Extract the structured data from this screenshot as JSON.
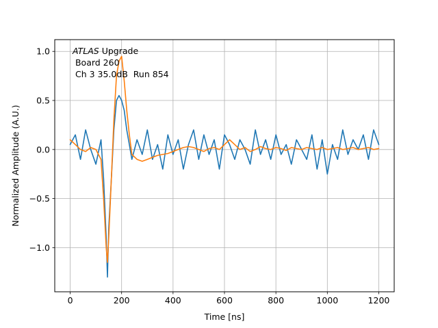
{
  "chart_data": {
    "type": "line",
    "xlabel": "Time [ns]",
    "ylabel": "Normalized Amplitude (A.U.)",
    "xlim": [
      -60,
      1260
    ],
    "ylim": [
      -1.45,
      1.12
    ],
    "xticks": [
      0,
      200,
      400,
      600,
      800,
      1000,
      1200
    ],
    "xtick_labels": [
      "0",
      "200",
      "400",
      "600",
      "800",
      "1000",
      "1200"
    ],
    "yticks": [
      -1.0,
      -0.5,
      0.0,
      0.5,
      1.0
    ],
    "ytick_labels": [
      "−1.0",
      "−0.5",
      "0.0",
      "0.5",
      "1.0"
    ],
    "grid": true,
    "annotation": {
      "italic_part": "ATLAS",
      "line1_rest": " Upgrade",
      "line2": " Board 260",
      "line3": " Ch 3 35.0dB  Run 854"
    },
    "series": [
      {
        "color": "#1f77b4",
        "x": [
          0,
          20,
          40,
          60,
          80,
          100,
          120,
          130,
          140,
          145,
          150,
          160,
          170,
          180,
          190,
          200,
          210,
          220,
          230,
          240,
          260,
          280,
          300,
          320,
          340,
          360,
          380,
          400,
          420,
          440,
          460,
          480,
          500,
          520,
          540,
          560,
          580,
          600,
          620,
          640,
          660,
          680,
          700,
          720,
          740,
          760,
          780,
          800,
          820,
          840,
          860,
          880,
          900,
          920,
          940,
          960,
          980,
          1000,
          1020,
          1040,
          1060,
          1080,
          1100,
          1120,
          1140,
          1160,
          1180,
          1200
        ],
        "y": [
          0.05,
          0.15,
          -0.1,
          0.2,
          0.0,
          -0.15,
          0.1,
          -0.3,
          -0.9,
          -1.3,
          -0.8,
          -0.3,
          0.2,
          0.5,
          0.55,
          0.5,
          0.4,
          0.2,
          0.05,
          -0.1,
          0.1,
          -0.05,
          0.2,
          -0.1,
          0.05,
          -0.2,
          0.15,
          -0.05,
          0.1,
          -0.2,
          0.05,
          0.2,
          -0.1,
          0.15,
          -0.05,
          0.1,
          -0.2,
          0.15,
          0.05,
          -0.1,
          0.1,
          0.0,
          -0.15,
          0.2,
          -0.05,
          0.1,
          -0.1,
          0.15,
          -0.05,
          0.05,
          -0.15,
          0.1,
          0.0,
          -0.1,
          0.15,
          -0.2,
          0.1,
          -0.25,
          0.05,
          -0.1,
          0.2,
          -0.05,
          0.1,
          0.0,
          0.15,
          -0.1,
          0.2,
          0.05
        ]
      },
      {
        "color": "#ff7f0e",
        "x": [
          0,
          20,
          40,
          60,
          80,
          100,
          120,
          130,
          140,
          145,
          150,
          160,
          170,
          180,
          190,
          200,
          210,
          220,
          230,
          240,
          260,
          280,
          300,
          320,
          340,
          360,
          380,
          400,
          420,
          440,
          460,
          480,
          500,
          520,
          540,
          560,
          580,
          600,
          620,
          640,
          660,
          680,
          700,
          720,
          740,
          760,
          780,
          800,
          820,
          840,
          860,
          880,
          900,
          920,
          940,
          960,
          980,
          1000,
          1020,
          1040,
          1060,
          1080,
          1100,
          1120,
          1140,
          1160,
          1180,
          1200
        ],
        "y": [
          0.1,
          0.05,
          0.0,
          -0.02,
          0.02,
          0.0,
          -0.1,
          -0.5,
          -1.0,
          -1.15,
          -0.9,
          -0.3,
          0.3,
          0.75,
          0.9,
          0.95,
          0.7,
          0.4,
          0.15,
          -0.05,
          -0.1,
          -0.12,
          -0.1,
          -0.08,
          -0.06,
          -0.05,
          -0.04,
          -0.02,
          0.0,
          0.02,
          0.03,
          0.02,
          0.0,
          -0.02,
          0.01,
          0.02,
          0.0,
          0.05,
          0.1,
          0.05,
          0.0,
          0.02,
          -0.02,
          0.0,
          0.03,
          0.01,
          0.0,
          0.02,
          0.01,
          -0.01,
          0.02,
          0.01,
          0.0,
          0.02,
          0.01,
          0.0,
          0.02,
          0.0,
          0.01,
          0.02,
          0.0,
          0.01,
          0.02,
          0.0,
          0.01,
          0.02,
          0.0,
          0.01
        ]
      }
    ]
  }
}
